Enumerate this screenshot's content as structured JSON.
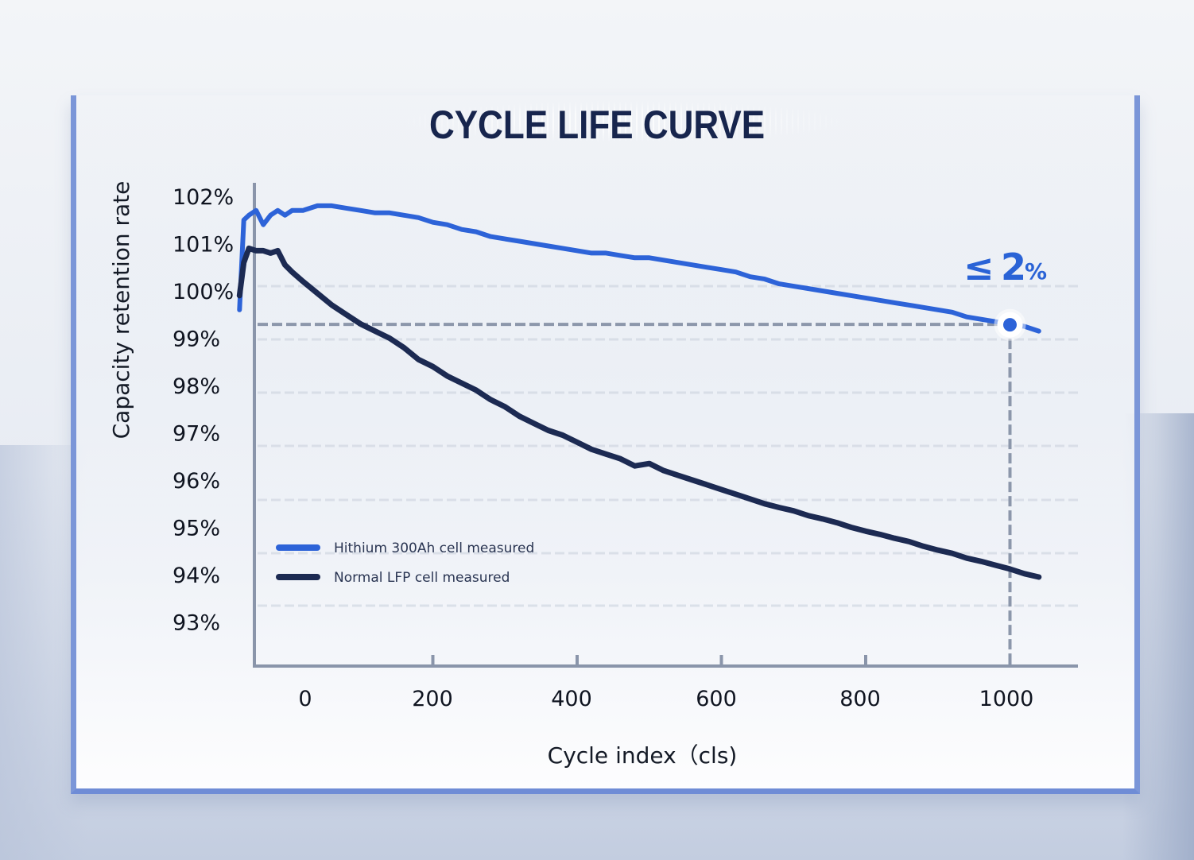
{
  "page": {
    "title": "CYCLE LIFE CURVE"
  },
  "chart_data": {
    "type": "line",
    "title": "CYCLE LIFE CURVE",
    "xlabel": "Cycle index（cls)",
    "ylabel": "Capacity retention rate",
    "xlim": [
      -70,
      1045
    ],
    "ylim": [
      92.2,
      102.3
    ],
    "x_ticks": [
      0,
      200,
      400,
      600,
      800,
      1000
    ],
    "x_tick_labels": [
      "0",
      "200",
      "400",
      "600",
      "800",
      "1000"
    ],
    "y_ticks": [
      102,
      101,
      100,
      99,
      98,
      97,
      96,
      95,
      94,
      93
    ],
    "y_tick_labels": [
      "102%",
      "101%",
      "100%",
      "99%",
      "98%",
      "97%",
      "96%",
      "95%",
      "94%",
      "93%"
    ],
    "grid": "horizontal dashed",
    "legend_position": "bottom-left",
    "series": [
      {
        "name": "Hithium 300Ah cell measured",
        "color": "#2d63d8",
        "x": [
          -68,
          -62,
          -55,
          -45,
          -35,
          -25,
          -15,
          -5,
          5,
          20,
          40,
          60,
          80,
          100,
          120,
          140,
          160,
          180,
          200,
          220,
          240,
          260,
          280,
          300,
          320,
          340,
          360,
          380,
          400,
          420,
          440,
          460,
          480,
          500,
          520,
          540,
          560,
          580,
          600,
          620,
          640,
          660,
          680,
          700,
          720,
          740,
          760,
          780,
          800,
          820,
          840,
          860,
          880,
          900,
          920,
          940,
          960,
          980,
          1000,
          1020,
          1040
        ],
        "y": [
          99.6,
          101.5,
          101.6,
          101.7,
          101.4,
          101.6,
          101.7,
          101.6,
          101.7,
          101.7,
          101.8,
          101.8,
          101.75,
          101.7,
          101.65,
          101.65,
          101.6,
          101.55,
          101.45,
          101.4,
          101.3,
          101.25,
          101.15,
          101.1,
          101.05,
          101.0,
          100.95,
          100.9,
          100.85,
          100.8,
          100.8,
          100.75,
          100.7,
          100.7,
          100.65,
          100.6,
          100.55,
          100.5,
          100.45,
          100.4,
          100.3,
          100.25,
          100.15,
          100.1,
          100.05,
          100.0,
          99.95,
          99.9,
          99.85,
          99.8,
          99.75,
          99.7,
          99.65,
          99.6,
          99.55,
          99.45,
          99.4,
          99.35,
          99.3,
          99.25,
          99.15
        ]
      },
      {
        "name": "Normal LFP cell measured",
        "color": "#1c2a52",
        "x": [
          -68,
          -62,
          -55,
          -45,
          -35,
          -25,
          -15,
          -5,
          5,
          20,
          40,
          60,
          80,
          100,
          120,
          140,
          160,
          180,
          200,
          220,
          240,
          260,
          280,
          300,
          320,
          340,
          360,
          380,
          400,
          420,
          440,
          460,
          480,
          500,
          520,
          540,
          560,
          580,
          600,
          620,
          640,
          660,
          680,
          700,
          720,
          740,
          760,
          780,
          800,
          820,
          840,
          860,
          880,
          900,
          920,
          940,
          960,
          980,
          1000,
          1020,
          1040
        ],
        "y": [
          99.9,
          100.6,
          100.9,
          100.85,
          100.85,
          100.8,
          100.85,
          100.55,
          100.4,
          100.2,
          99.95,
          99.7,
          99.5,
          99.3,
          99.15,
          99.0,
          98.8,
          98.55,
          98.4,
          98.2,
          98.05,
          97.9,
          97.7,
          97.55,
          97.35,
          97.2,
          97.05,
          96.95,
          96.8,
          96.65,
          96.55,
          96.45,
          96.3,
          96.35,
          96.2,
          96.1,
          96.0,
          95.9,
          95.8,
          95.7,
          95.6,
          95.5,
          95.42,
          95.35,
          95.25,
          95.18,
          95.1,
          95.0,
          94.92,
          94.85,
          94.77,
          94.7,
          94.6,
          94.52,
          94.45,
          94.35,
          94.28,
          94.2,
          94.12,
          94.02,
          93.95
        ]
      }
    ],
    "reference_lines": {
      "horizontal_value": 99.3,
      "vertical_value": 1000
    },
    "highlight_point": {
      "x": 1000,
      "y": 99.3,
      "color": "#2d63d8"
    },
    "annotations": [
      {
        "text_symbol": "≤",
        "text_value": "2",
        "text_unit": "%",
        "color": "#2a63d6"
      }
    ]
  }
}
